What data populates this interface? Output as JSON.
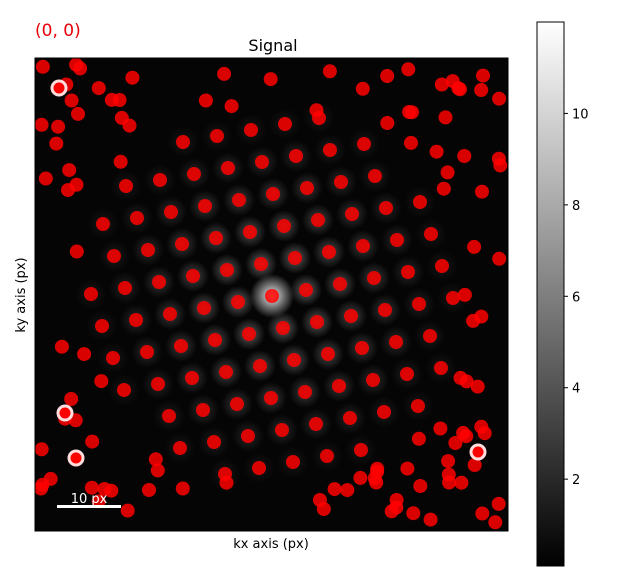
{
  "cursor_readout": "(0, 0)",
  "readout_color": "#e8000b",
  "scalebar_label": "10 px",
  "chart_data": {
    "type": "heatmap",
    "title": "Signal",
    "xlabel": "kx axis (px)",
    "ylabel": "ky axis (px)",
    "grid": false,
    "colormap": "gray",
    "colorbar": {
      "ticks": [
        2,
        4,
        6,
        8,
        10
      ],
      "tick_labels": [
        "2",
        "4",
        "6",
        "8",
        "10"
      ],
      "range": [
        0.1,
        12
      ]
    },
    "marker_color": "#ff0000",
    "highlighted_marker_color": "#ffdddd"
  }
}
